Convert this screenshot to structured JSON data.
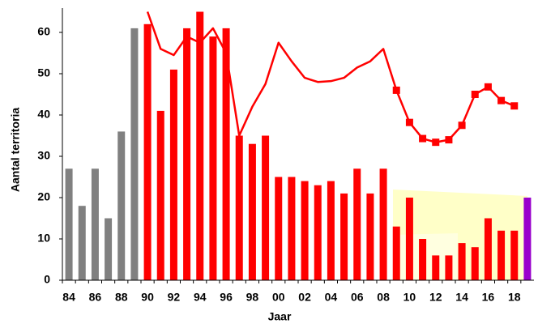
{
  "chart_data": {
    "type": "bar",
    "x_label": "Jaar",
    "y_label": "Aantal territoria",
    "categories": [
      "84",
      null,
      "86",
      null,
      "88",
      null,
      "90",
      null,
      "92",
      null,
      "94",
      null,
      "96",
      null,
      "98",
      null,
      "00",
      null,
      "02",
      null,
      "04",
      null,
      "06",
      null,
      "08",
      null,
      "10",
      null,
      "12",
      null,
      "14",
      null,
      "16",
      null,
      "18",
      null
    ],
    "values": [
      27,
      18,
      27,
      15,
      36,
      61,
      62,
      41,
      51,
      61,
      65,
      59,
      61,
      35,
      33,
      35,
      25,
      25,
      24,
      23,
      24,
      21,
      27,
      21,
      27,
      13,
      20,
      10,
      6,
      6,
      9,
      8,
      15,
      12,
      12,
      20
    ],
    "colors": [
      "#808080",
      "#808080",
      "#808080",
      "#808080",
      "#808080",
      "#808080",
      "#ff0000",
      "#ff0000",
      "#ff0000",
      "#ff0000",
      "#ff0000",
      "#ff0000",
      "#ff0000",
      "#ff0000",
      "#ff0000",
      "#ff0000",
      "#ff0000",
      "#ff0000",
      "#ff0000",
      "#ff0000",
      "#ff0000",
      "#ff0000",
      "#ff0000",
      "#ff0000",
      "#ff0000",
      "#ff0000",
      "#ff0000",
      "#ff0000",
      "#ff0000",
      "#ff0000",
      "#ff0000",
      "#ff0000",
      "#ff0000",
      "#ff0000",
      "#ff0000",
      "#9900cc"
    ],
    "lines": [
      {
        "type": "line",
        "color": "#ff0000",
        "markers": false,
        "values": [
          null,
          null,
          null,
          null,
          null,
          null,
          65,
          56,
          54.5,
          59,
          57.5,
          61,
          55,
          35,
          42,
          47.5,
          57.5,
          53,
          49,
          48,
          48.2,
          49,
          51.5,
          53,
          56,
          46,
          null,
          null,
          null,
          null,
          null,
          null,
          null,
          null,
          null,
          null
        ]
      },
      {
        "type": "line",
        "color": "#ff0000",
        "markers": true,
        "values": [
          null,
          null,
          null,
          null,
          null,
          null,
          null,
          null,
          null,
          null,
          null,
          null,
          null,
          null,
          null,
          null,
          null,
          null,
          null,
          null,
          null,
          null,
          null,
          null,
          null,
          46,
          38.2,
          34.3,
          33.4,
          34,
          37.5,
          45,
          46.8,
          43.5,
          42.2,
          null
        ]
      }
    ],
    "ylim": [
      0,
      65
    ],
    "yticks": [
      0,
      10,
      20,
      30,
      40,
      50,
      60
    ],
    "grid": false
  }
}
